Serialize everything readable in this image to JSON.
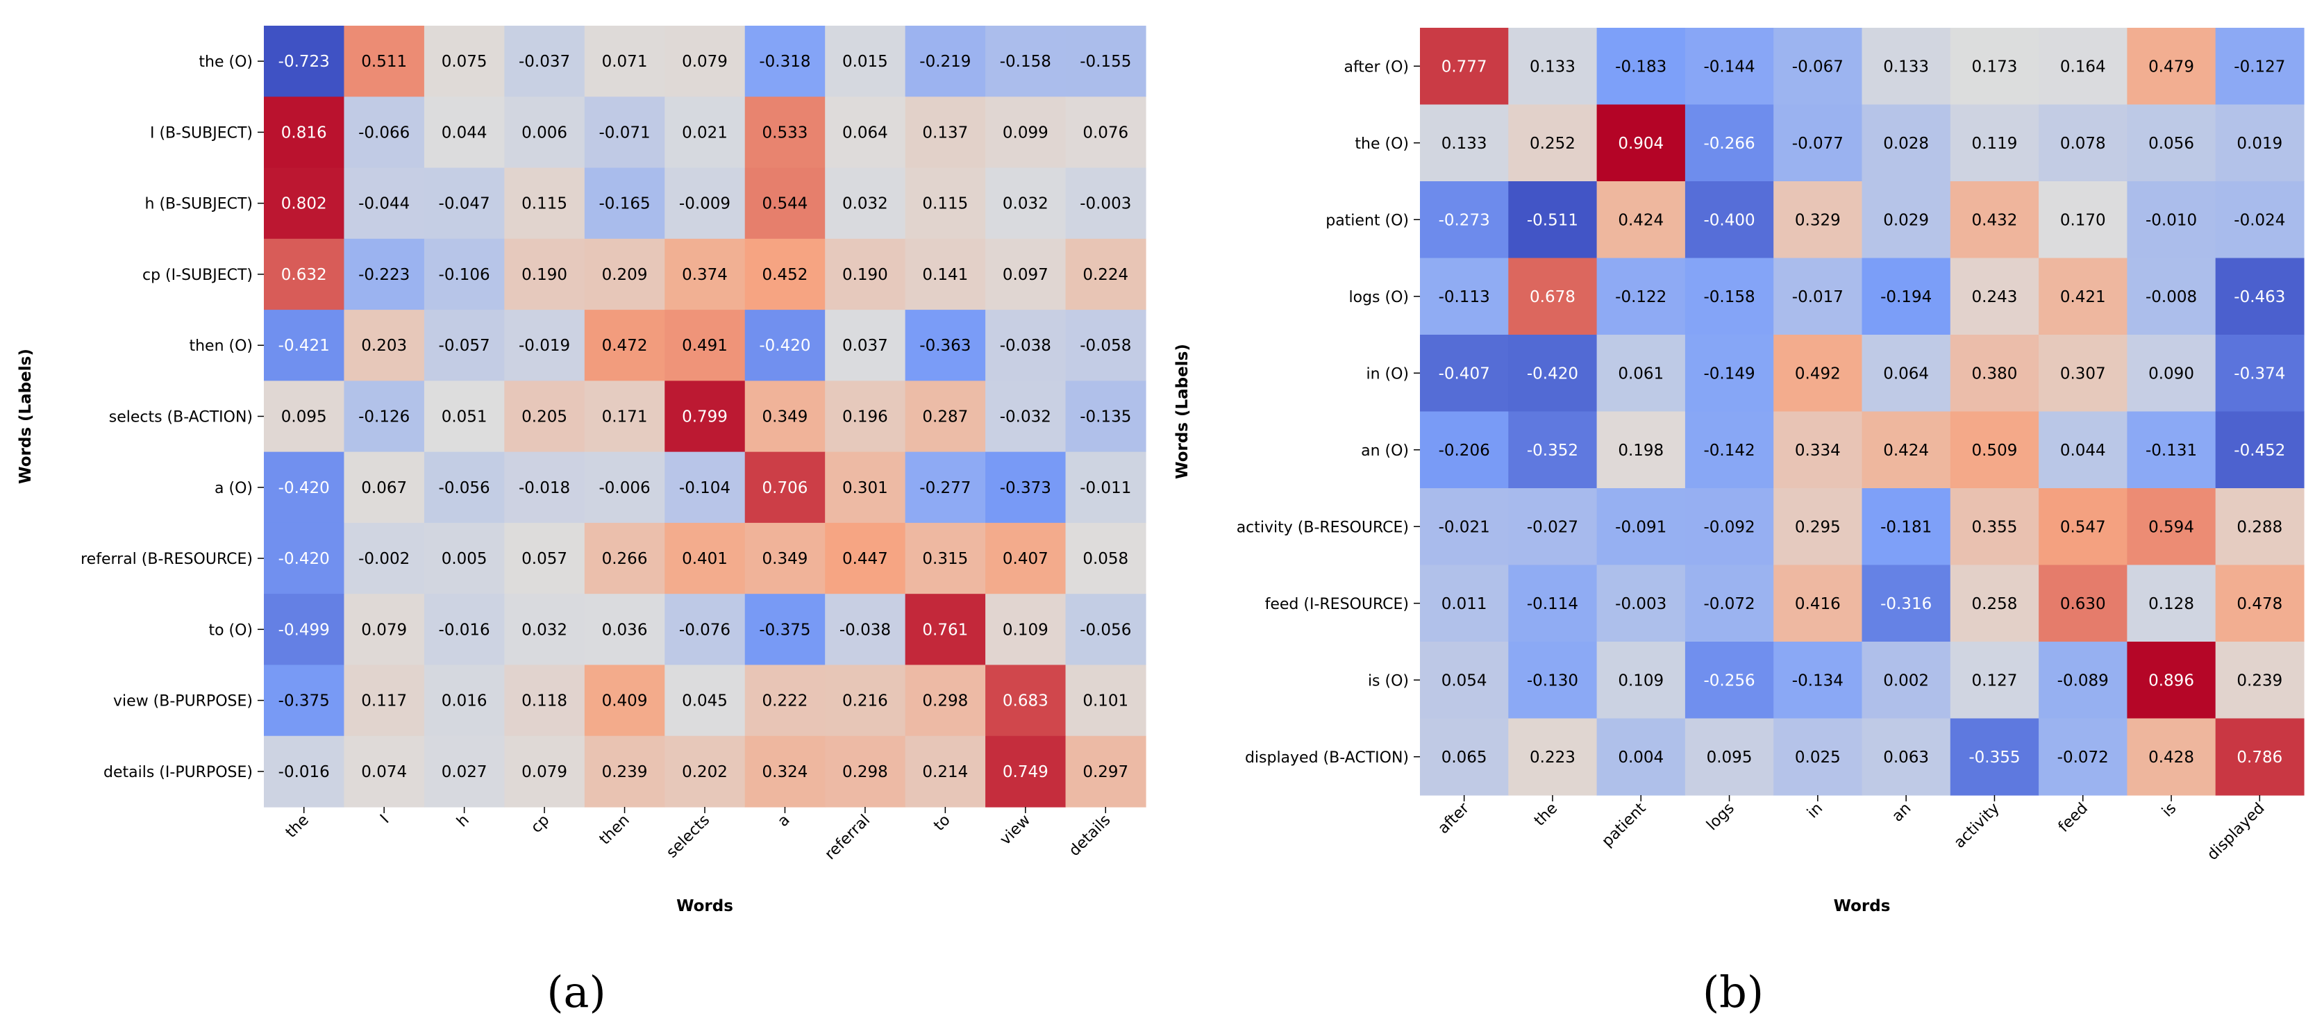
{
  "chart_data": [
    {
      "type": "heatmap",
      "caption": "(a)",
      "xlabel": "Words",
      "ylabel": "Words (Labels)",
      "x_categories": [
        "the",
        "I",
        "h",
        "cp",
        "then",
        "selects",
        "a",
        "referral",
        "to",
        "view",
        "details"
      ],
      "y_categories": [
        "the (O)",
        "I (B-SUBJECT)",
        "h (B-SUBJECT)",
        "cp (I-SUBJECT)",
        "then (O)",
        "selects (B-ACTION)",
        "a (O)",
        "referral (B-RESOURCE)",
        "to (O)",
        "view (B-PURPOSE)",
        "details (I-PURPOSE)"
      ],
      "values": [
        [
          -0.723,
          0.511,
          0.075,
          -0.037,
          0.071,
          0.079,
          -0.318,
          0.015,
          -0.219,
          -0.158,
          -0.155
        ],
        [
          0.816,
          -0.066,
          0.044,
          0.006,
          -0.071,
          0.021,
          0.533,
          0.064,
          0.137,
          0.099,
          0.076
        ],
        [
          0.802,
          -0.044,
          -0.047,
          0.115,
          -0.165,
          -0.009,
          0.544,
          0.032,
          0.115,
          0.032,
          -0.003
        ],
        [
          0.632,
          -0.223,
          -0.106,
          0.19,
          0.209,
          0.374,
          0.452,
          0.19,
          0.141,
          0.097,
          0.224
        ],
        [
          -0.421,
          0.203,
          -0.057,
          -0.019,
          0.472,
          0.491,
          -0.42,
          0.037,
          -0.363,
          -0.038,
          -0.058
        ],
        [
          0.095,
          -0.126,
          0.051,
          0.205,
          0.171,
          0.799,
          0.349,
          0.196,
          0.287,
          -0.032,
          -0.135
        ],
        [
          -0.42,
          0.067,
          -0.056,
          -0.018,
          -0.006,
          -0.104,
          0.706,
          0.301,
          -0.277,
          -0.373,
          -0.011
        ],
        [
          -0.42,
          -0.002,
          0.005,
          0.057,
          0.266,
          0.401,
          0.349,
          0.447,
          0.315,
          0.407,
          0.058
        ],
        [
          -0.499,
          0.079,
          -0.016,
          0.032,
          0.036,
          -0.076,
          -0.375,
          -0.038,
          0.761,
          0.109,
          -0.056
        ],
        [
          -0.375,
          0.117,
          0.016,
          0.118,
          0.409,
          0.045,
          0.222,
          0.216,
          0.298,
          0.683,
          0.101
        ],
        [
          -0.016,
          0.074,
          0.027,
          0.079,
          0.239,
          0.202,
          0.324,
          0.298,
          0.214,
          0.749,
          0.297
        ]
      ],
      "value_range": [
        -0.75,
        0.85
      ],
      "colormap": "coolwarm",
      "annotated": true
    },
    {
      "type": "heatmap",
      "caption": "(b)",
      "xlabel": "Words",
      "ylabel": "Words (Labels)",
      "x_categories": [
        "after",
        "the",
        "patient",
        "logs",
        "in",
        "an",
        "activity",
        "feed",
        "is",
        "displayed"
      ],
      "y_categories": [
        "after (O)",
        "the (O)",
        "patient (O)",
        "logs (O)",
        "in (O)",
        "an (O)",
        "activity (B-RESOURCE)",
        "feed (I-RESOURCE)",
        "is (O)",
        "displayed (B-ACTION)"
      ],
      "values": [
        [
          0.777,
          0.133,
          -0.183,
          -0.144,
          -0.067,
          0.133,
          0.173,
          0.164,
          0.479,
          -0.127
        ],
        [
          0.133,
          0.252,
          0.904,
          -0.266,
          -0.077,
          0.028,
          0.119,
          0.078,
          0.056,
          0.019
        ],
        [
          -0.273,
          -0.511,
          0.424,
          -0.4,
          0.329,
          0.029,
          0.432,
          0.17,
          -0.01,
          -0.024
        ],
        [
          -0.113,
          0.678,
          -0.122,
          -0.158,
          -0.017,
          -0.194,
          0.243,
          0.421,
          -0.008,
          -0.463
        ],
        [
          -0.407,
          -0.42,
          0.061,
          -0.149,
          0.492,
          0.064,
          0.38,
          0.307,
          0.09,
          -0.374
        ],
        [
          -0.206,
          -0.352,
          0.198,
          -0.142,
          0.334,
          0.424,
          0.509,
          0.044,
          -0.131,
          -0.452
        ],
        [
          -0.021,
          -0.027,
          -0.091,
          -0.092,
          0.295,
          -0.181,
          0.355,
          0.547,
          0.594,
          0.288
        ],
        [
          0.011,
          -0.114,
          -0.003,
          -0.072,
          0.416,
          -0.316,
          0.258,
          0.63,
          0.128,
          0.478
        ],
        [
          0.054,
          -0.13,
          0.109,
          -0.256,
          -0.134,
          0.002,
          0.127,
          -0.089,
          0.896,
          0.239
        ],
        [
          0.065,
          0.223,
          0.004,
          0.095,
          0.025,
          0.063,
          -0.355,
          -0.072,
          0.428,
          0.786
        ]
      ],
      "value_range": [
        -0.55,
        0.9
      ],
      "colormap": "coolwarm",
      "annotated": true
    }
  ]
}
